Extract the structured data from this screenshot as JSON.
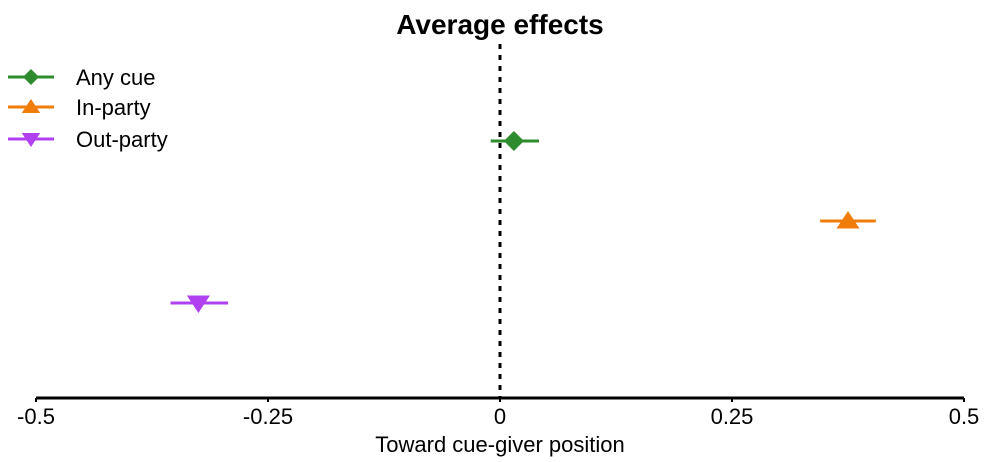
{
  "chart_data": {
    "type": "scatter",
    "title": "Average effects",
    "xlabel": "Toward cue-giver position",
    "ylabel": "",
    "xlim": [
      -0.5,
      0.5
    ],
    "xticks": [
      -0.5,
      -0.25,
      0,
      0.25,
      0.5
    ],
    "xtick_labels": [
      "-0.5",
      "-0.25",
      "0",
      "0.25",
      "0.5"
    ],
    "reference_line": {
      "x": 0,
      "style": "dotted"
    },
    "grid": false,
    "legend_position": "top-left",
    "series": [
      {
        "name": "Any cue",
        "marker": "diamond",
        "color": "#2e8b2e",
        "estimate": 0.015,
        "ci_low": -0.01,
        "ci_high": 0.042
      },
      {
        "name": "In-party",
        "marker": "triangle-up",
        "color": "#f07d0a",
        "estimate": 0.375,
        "ci_low": 0.345,
        "ci_high": 0.405
      },
      {
        "name": "Out-party",
        "marker": "triangle-down",
        "color": "#b040f0",
        "estimate": -0.325,
        "ci_low": -0.355,
        "ci_high": -0.293
      }
    ]
  }
}
